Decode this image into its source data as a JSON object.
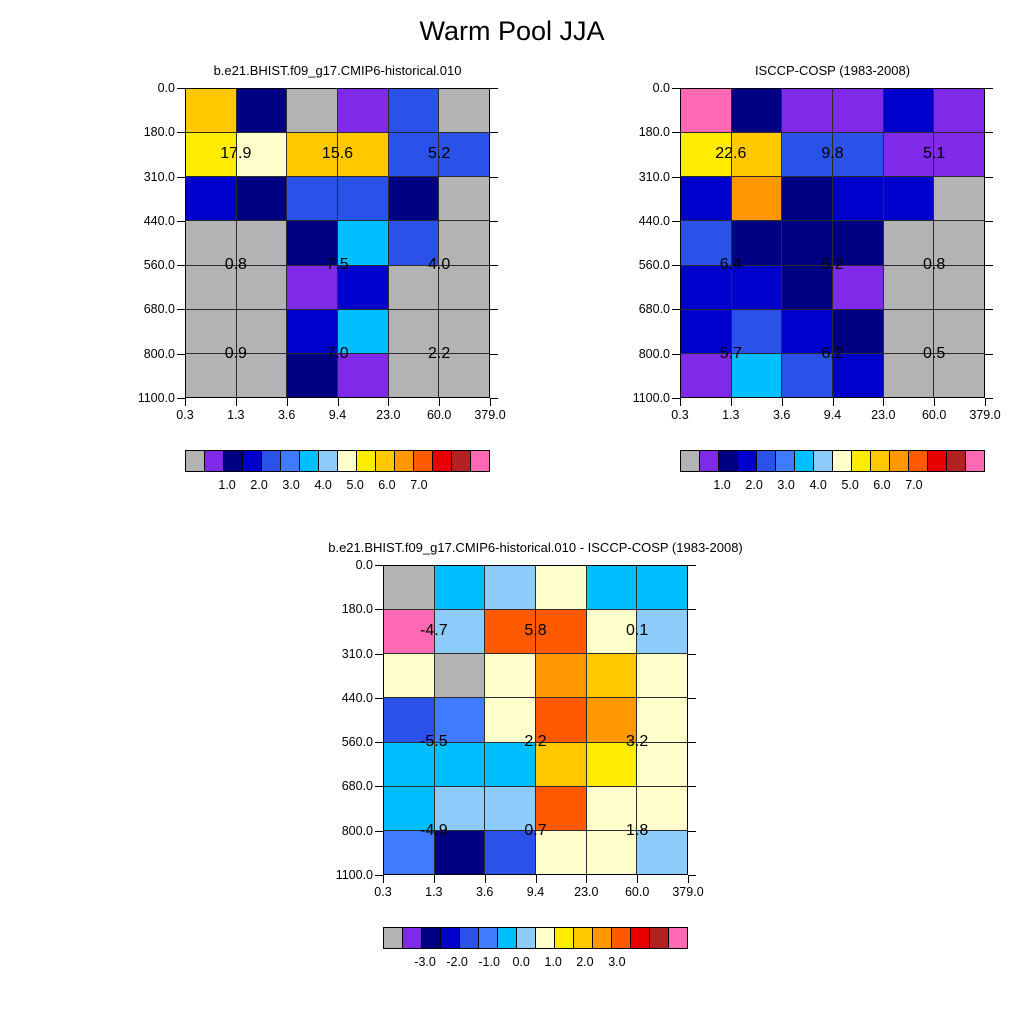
{
  "figure": {
    "title": "Warm Pool JJA"
  },
  "palette": [
    "#B3B3B3",
    "#7F2AE8",
    "#000082",
    "#0000CD",
    "#2A52E8",
    "#3E7BFF",
    "#00BFFF",
    "#8CCBFA",
    "#FFFFCC",
    "#FFEC00",
    "#FFC800",
    "#FF9800",
    "#FF5A00",
    "#E80000",
    "#B22222",
    "#FF69B4"
  ],
  "chart_data": [
    {
      "type": "heatmap",
      "name": "model",
      "title": "b.e21.BHIST.f09_g17.CMIP6-historical.010",
      "x_tick_labels": [
        "0.3",
        "1.3",
        "3.6",
        "9.4",
        "23.0",
        "60.0",
        "379.0"
      ],
      "y_tick_labels": [
        "0.0",
        "180.0",
        "310.0",
        "440.0",
        "560.0",
        "680.0",
        "800.0",
        "1100.0"
      ],
      "x_bin_edges": [
        0.3,
        1.3,
        3.6,
        9.4,
        23.0,
        60.0,
        379.0
      ],
      "y_bin_edges": [
        0.0,
        180.0,
        310.0,
        440.0,
        560.0,
        680.0,
        800.0,
        1100.0
      ],
      "cell_color_index": [
        [
          10,
          2,
          0,
          1,
          4,
          0
        ],
        [
          9,
          8,
          10,
          10,
          4,
          4
        ],
        [
          3,
          2,
          4,
          4,
          2,
          0
        ],
        [
          0,
          0,
          2,
          6,
          4,
          0
        ],
        [
          0,
          0,
          1,
          3,
          0,
          0
        ],
        [
          0,
          0,
          3,
          6,
          0,
          0
        ],
        [
          0,
          0,
          2,
          1,
          0,
          0
        ]
      ],
      "block_labels": [
        [
          "17.9",
          "15.6",
          "5.2"
        ],
        [
          "0.8",
          "7.5",
          "4.0"
        ],
        [
          "0.9",
          "7.0",
          "2.2"
        ]
      ],
      "block_values": [
        [
          17.9,
          15.6,
          5.2
        ],
        [
          0.8,
          7.5,
          4.0
        ],
        [
          0.9,
          7.0,
          2.2
        ]
      ],
      "colorbar_tick_labels": [
        "1.0",
        "2.0",
        "3.0",
        "4.0",
        "5.0",
        "6.0",
        "7.0"
      ]
    },
    {
      "type": "heatmap",
      "name": "observations",
      "title": "ISCCP-COSP (1983-2008)",
      "x_tick_labels": [
        "0.3",
        "1.3",
        "3.6",
        "9.4",
        "23.0",
        "60.0",
        "379.0"
      ],
      "y_tick_labels": [
        "0.0",
        "180.0",
        "310.0",
        "440.0",
        "560.0",
        "680.0",
        "800.0",
        "1100.0"
      ],
      "x_bin_edges": [
        0.3,
        1.3,
        3.6,
        9.4,
        23.0,
        60.0,
        379.0
      ],
      "y_bin_edges": [
        0.0,
        180.0,
        310.0,
        440.0,
        560.0,
        680.0,
        800.0,
        1100.0
      ],
      "cell_color_index": [
        [
          15,
          2,
          1,
          1,
          3,
          1
        ],
        [
          9,
          10,
          4,
          4,
          1,
          1
        ],
        [
          3,
          11,
          2,
          3,
          3,
          0
        ],
        [
          4,
          2,
          2,
          2,
          0,
          0
        ],
        [
          3,
          3,
          2,
          1,
          0,
          0
        ],
        [
          3,
          4,
          3,
          2,
          0,
          0
        ],
        [
          1,
          6,
          4,
          3,
          0,
          0
        ]
      ],
      "block_labels": [
        [
          "22.6",
          "9.8",
          "5.1"
        ],
        [
          "6.4",
          "5.2",
          "0.8"
        ],
        [
          "5.7",
          "6.2",
          "0.5"
        ]
      ],
      "block_values": [
        [
          22.6,
          9.8,
          5.1
        ],
        [
          6.4,
          5.2,
          0.8
        ],
        [
          5.7,
          6.2,
          0.5
        ]
      ],
      "colorbar_tick_labels": [
        "1.0",
        "2.0",
        "3.0",
        "4.0",
        "5.0",
        "6.0",
        "7.0"
      ]
    },
    {
      "type": "heatmap",
      "name": "difference",
      "title": "b.e21.BHIST.f09_g17.CMIP6-historical.010 - ISCCP-COSP (1983-2008)",
      "x_tick_labels": [
        "0.3",
        "1.3",
        "3.6",
        "9.4",
        "23.0",
        "60.0",
        "379.0"
      ],
      "y_tick_labels": [
        "0.0",
        "180.0",
        "310.0",
        "440.0",
        "560.0",
        "680.0",
        "800.0",
        "1100.0"
      ],
      "x_bin_edges": [
        0.3,
        1.3,
        3.6,
        9.4,
        23.0,
        60.0,
        379.0
      ],
      "y_bin_edges": [
        0.0,
        180.0,
        310.0,
        440.0,
        560.0,
        680.0,
        800.0,
        1100.0
      ],
      "cell_color_index": [
        [
          0,
          6,
          7,
          8,
          6,
          6
        ],
        [
          15,
          7,
          12,
          12,
          8,
          7
        ],
        [
          8,
          0,
          8,
          11,
          10,
          8
        ],
        [
          4,
          5,
          8,
          12,
          11,
          8
        ],
        [
          6,
          6,
          6,
          10,
          9,
          8
        ],
        [
          6,
          7,
          7,
          12,
          8,
          8
        ],
        [
          5,
          2,
          4,
          8,
          8,
          7
        ]
      ],
      "block_labels": [
        [
          "-4.7",
          "5.8",
          "0.1"
        ],
        [
          "-5.5",
          "2.2",
          "3.2"
        ],
        [
          "-4.9",
          "0.7",
          "1.8"
        ]
      ],
      "block_values": [
        [
          -4.7,
          5.8,
          0.1
        ],
        [
          -5.5,
          2.2,
          3.2
        ],
        [
          -4.9,
          0.7,
          1.8
        ]
      ],
      "colorbar_tick_labels": [
        "-3.0",
        "-2.0",
        "-1.0",
        "0.0",
        "1.0",
        "2.0",
        "3.0"
      ]
    }
  ]
}
